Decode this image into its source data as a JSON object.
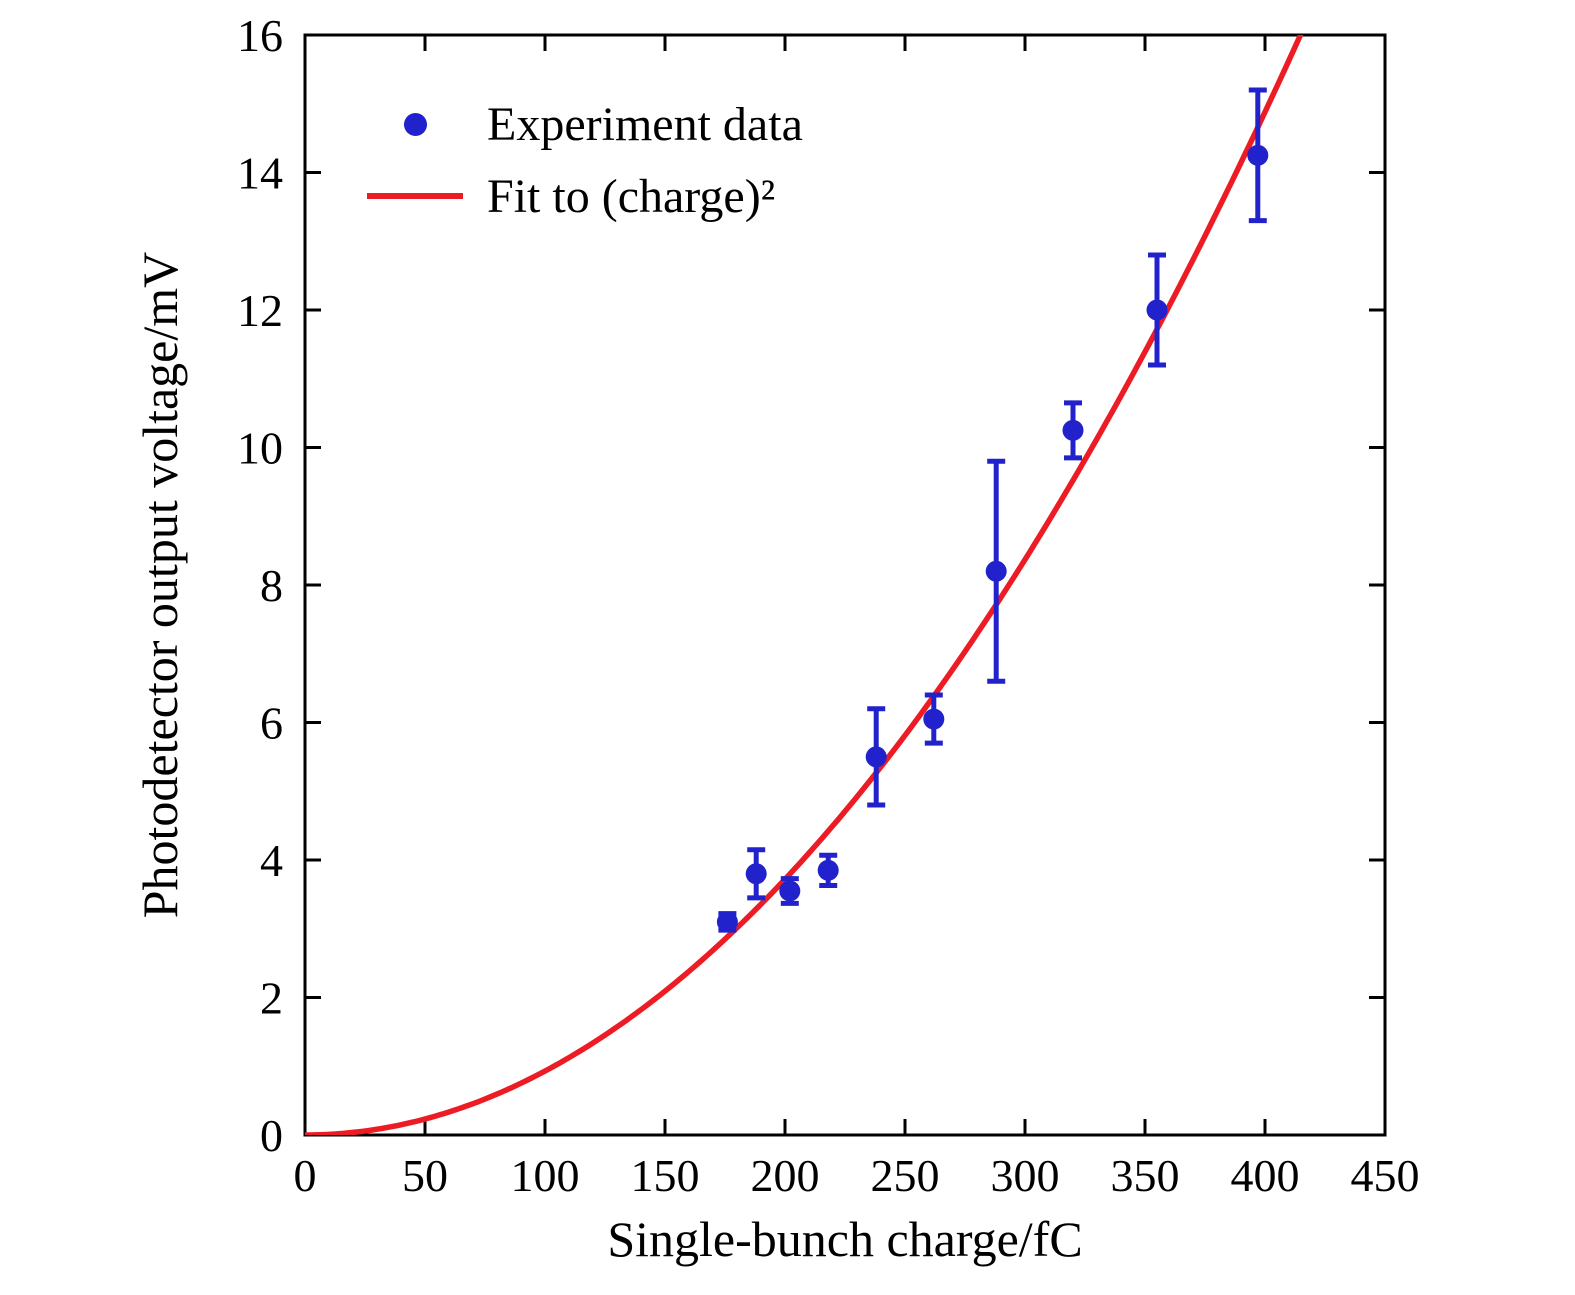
{
  "figure": {
    "background": "#ffffff",
    "frame_color": "#000000",
    "text_color": "#000000"
  },
  "chart_data": {
    "type": "scatter",
    "title": "",
    "xlabel": "Single-bunch charge/fC",
    "ylabel": "Photodetector output voltage/mV",
    "xlim": [
      0,
      450
    ],
    "ylim": [
      0,
      16
    ],
    "xticks": [
      0,
      50,
      100,
      150,
      200,
      250,
      300,
      350,
      400,
      450
    ],
    "yticks": [
      0,
      2,
      4,
      6,
      8,
      10,
      12,
      14,
      16
    ],
    "grid": false,
    "legend_position": "upper-left",
    "series": [
      {
        "name": "Experiment data",
        "type": "scatter",
        "color": "#2222cc",
        "x": [
          176,
          188,
          202,
          218,
          238,
          262,
          288,
          320,
          355,
          397
        ],
        "y": [
          3.1,
          3.8,
          3.55,
          3.85,
          5.5,
          6.05,
          8.2,
          10.25,
          12.0,
          14.25
        ],
        "yerr": [
          0.12,
          0.35,
          0.18,
          0.22,
          0.7,
          0.35,
          1.6,
          0.4,
          0.8,
          0.95
        ]
      },
      {
        "name": "Fit to (charge)²",
        "type": "line",
        "color": "#ed1c24",
        "fit": "quadratic",
        "coefficient": 9.3e-05
      }
    ]
  }
}
